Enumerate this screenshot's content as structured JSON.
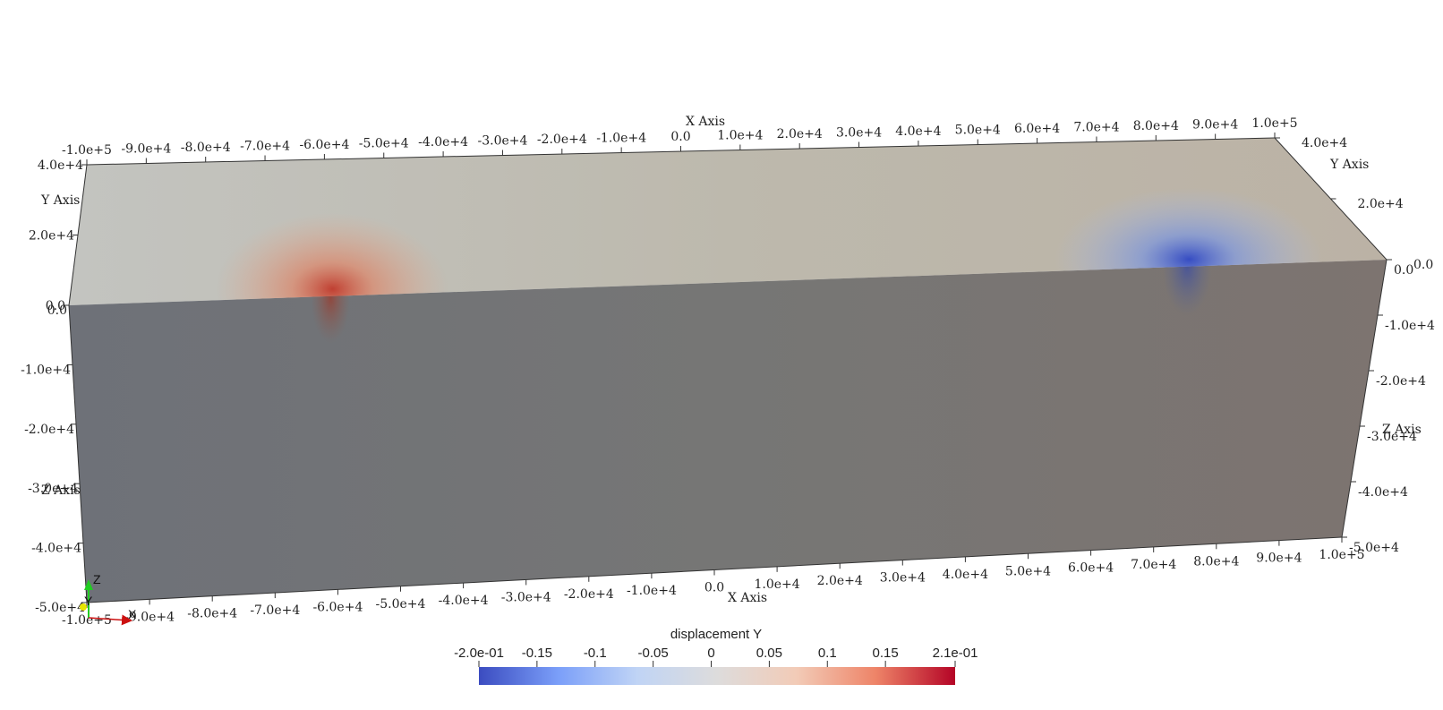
{
  "scene": {
    "x_axis": {
      "title": "X Axis",
      "ticks_top": [
        "-1.0e+5",
        "-9.0e+4",
        "-8.0e+4",
        "-7.0e+4",
        "-6.0e+4",
        "-5.0e+4",
        "-4.0e+4",
        "-3.0e+4",
        "-2.0e+4",
        "-1.0e+4",
        "0.0",
        "1.0e+4",
        "2.0e+4",
        "3.0e+4",
        "4.0e+4",
        "5.0e+4",
        "6.0e+4",
        "7.0e+4",
        "8.0e+4",
        "9.0e+4",
        "1.0e+5"
      ],
      "ticks_bottom": [
        "-1.0e+5",
        "-9.0e+4",
        "-8.0e+4",
        "-7.0e+4",
        "-6.0e+4",
        "-5.0e+4",
        "-4.0e+4",
        "-3.0e+4",
        "-2.0e+4",
        "-1.0e+4",
        "0.0",
        "1.0e+4",
        "2.0e+4",
        "3.0e+4",
        "4.0e+4",
        "5.0e+4",
        "6.0e+4",
        "7.0e+4",
        "8.0e+4",
        "9.0e+4",
        "1.0e+5"
      ]
    },
    "y_axis": {
      "title": "Y Axis",
      "ticks_left": [
        "4.0e+4",
        "2.0e+4",
        "0.0"
      ],
      "ticks_right": [
        "4.0e+4",
        "2.0e+4",
        "0.0"
      ]
    },
    "z_axis": {
      "title": "Z Axis",
      "ticks_left": [
        "0.0",
        "-1.0e+4",
        "-2.0e+4",
        "-3.0e+4",
        "-4.0e+4",
        "-5.0e+4"
      ],
      "ticks_right": [
        "0.0",
        "-1.0e+4",
        "-2.0e+4",
        "-3.0e+4",
        "-4.0e+4",
        "-5.0e+4"
      ]
    },
    "hotspots": [
      {
        "x": -60000,
        "sign": "positive",
        "color": "#c0392b"
      },
      {
        "x": 70000,
        "sign": "negative",
        "color": "#3b55c7"
      }
    ]
  },
  "colorbar": {
    "title": "displacement Y",
    "range": [
      -0.2,
      0.21
    ],
    "tick_labels": [
      "-2.0e-01",
      "-0.15",
      "-0.1",
      "-0.05",
      "0",
      "0.05",
      "0.1",
      "0.15",
      "2.1e-01"
    ],
    "tick_values": [
      -0.2,
      -0.15,
      -0.1,
      -0.05,
      0,
      0.05,
      0.1,
      0.15,
      0.21
    ],
    "colormap": [
      "#3b4cc0",
      "#7b9ff9",
      "#c0d4f5",
      "#dddcdc",
      "#f2cbb7",
      "#ee8468",
      "#b40426"
    ]
  },
  "orientation": {
    "z_label": "Z",
    "y_label": "Y",
    "x_label": "X",
    "z_color": "#22cc22",
    "y_color": "#e6e600",
    "x_color": "#cc1111"
  }
}
